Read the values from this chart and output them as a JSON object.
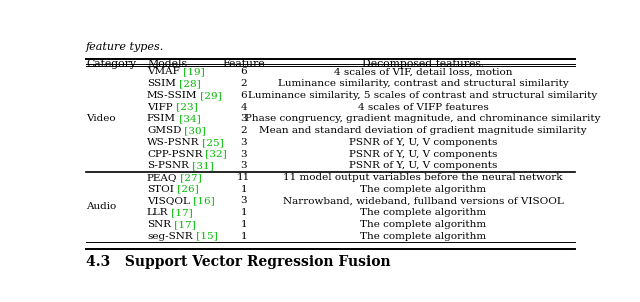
{
  "title_text": "feature types.",
  "headers": [
    "Category",
    "Models",
    "Feature",
    "Decomposed features."
  ],
  "video_rows": [
    {
      "model_black": "VMAF",
      "model_green": " [19]",
      "feature": "6",
      "desc": "4 scales of VIF, detail loss, motion"
    },
    {
      "model_black": "SSIM",
      "model_green": " [28]",
      "feature": "2",
      "desc": "Luminance similarity, contrast and structural similarity"
    },
    {
      "model_black": "MS-SSIM",
      "model_green": " [29]",
      "feature": "6",
      "desc": "Luminance similarity, 5 scales of contrast and structural similarity"
    },
    {
      "model_black": "VIFP",
      "model_green": " [23]",
      "feature": "4",
      "desc": "4 scales of VIFP features"
    },
    {
      "model_black": "FSIM",
      "model_green": " [34]",
      "feature": "3",
      "desc": "Phase congruency, gradient magnitude, and chrominance similarity"
    },
    {
      "model_black": "GMSD",
      "model_green": " [30]",
      "feature": "2",
      "desc": "Mean and standard deviation of gradient magnitude similarity"
    },
    {
      "model_black": "WS-PSNR",
      "model_green": " [25]",
      "feature": "3",
      "desc": "PSNR of Y, U, V components"
    },
    {
      "model_black": "CPP-PSNR",
      "model_green": " [32]",
      "feature": "3",
      "desc": "PSNR of Y, U, V components"
    },
    {
      "model_black": "S-PSNR",
      "model_green": " [31]",
      "feature": "3",
      "desc": "PSNR of Y, U, V components"
    }
  ],
  "audio_rows": [
    {
      "model_black": "PEAQ",
      "model_green": " [27]",
      "feature": "11",
      "desc": "11 model output variables before the neural network"
    },
    {
      "model_black": "STOI",
      "model_green": " [26]",
      "feature": "1",
      "desc": "The complete algorithm"
    },
    {
      "model_black": "VISQOL",
      "model_green": " [16]",
      "feature": "3",
      "desc": "Narrowband, wideband, fullband versions of VISOOL"
    },
    {
      "model_black": "LLR",
      "model_green": " [17]",
      "feature": "1",
      "desc": "The complete algorithm"
    },
    {
      "model_black": "SNR",
      "model_green": " [17]",
      "feature": "1",
      "desc": "The complete algorithm"
    },
    {
      "model_black": "seg-SNR",
      "model_green": " [15]",
      "feature": "1",
      "desc": "The complete algorithm"
    }
  ],
  "green_color": "#00BB00",
  "black_color": "#000000",
  "bg_color": "#ffffff",
  "fontsize": 7.5,
  "header_fontsize": 7.8,
  "bottom_label": "4.3   Support Vector Regression Fusion"
}
